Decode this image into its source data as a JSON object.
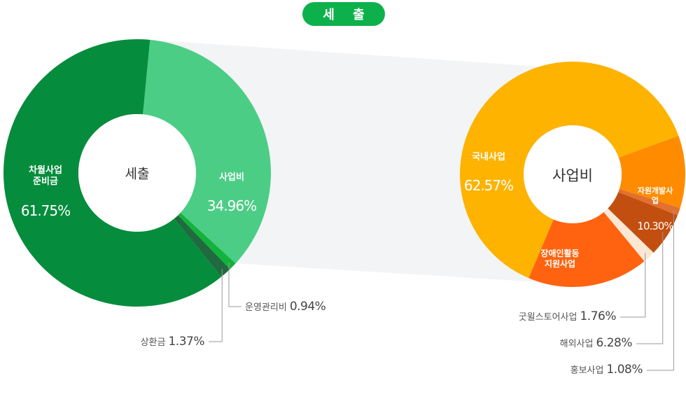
{
  "header": {
    "title": "세 출"
  },
  "chart_data": [
    {
      "type": "pie",
      "variant": "donut",
      "center_label": "세출",
      "slices": [
        {
          "label": "사업비",
          "value": 34.96,
          "display": "34.96%",
          "color": "#4ccd85"
        },
        {
          "label": "운영관리비",
          "value": 0.94,
          "display": "0.94%",
          "color": "#12b33a"
        },
        {
          "label": "상환금",
          "value": 1.37,
          "display": "1.37%",
          "color": "#1f6a3e"
        },
        {
          "label": "차월사업\n준비금",
          "value": 61.75,
          "display": "61.75%",
          "color": "#058c3c"
        }
      ]
    },
    {
      "type": "pie",
      "variant": "donut",
      "center_label": "사업비",
      "slices": [
        {
          "label": "자원개발사업",
          "value": 10.3,
          "display": "10.30%",
          "color": "#ff8c00"
        },
        {
          "label": "홍보사업",
          "value": 1.08,
          "display": "1.08%",
          "color": "#e2702e"
        },
        {
          "label": "해외사업",
          "value": 6.28,
          "display": "6.28%",
          "color": "#c24f10"
        },
        {
          "label": "굿윌스토어사업",
          "value": 1.76,
          "display": "1.76%",
          "color": "#fbe8d4"
        },
        {
          "label": "장애인활동\n지원사업",
          "value": 17.21,
          "display": "17.21%",
          "color": "#ff6310"
        },
        {
          "label": "국내사업",
          "value": 62.57,
          "display": "62.57%",
          "color": "#fdb300"
        }
      ]
    }
  ],
  "colors": {
    "accent": "#0db14b",
    "band": "#f2f4f6",
    "leader": "#999999"
  }
}
